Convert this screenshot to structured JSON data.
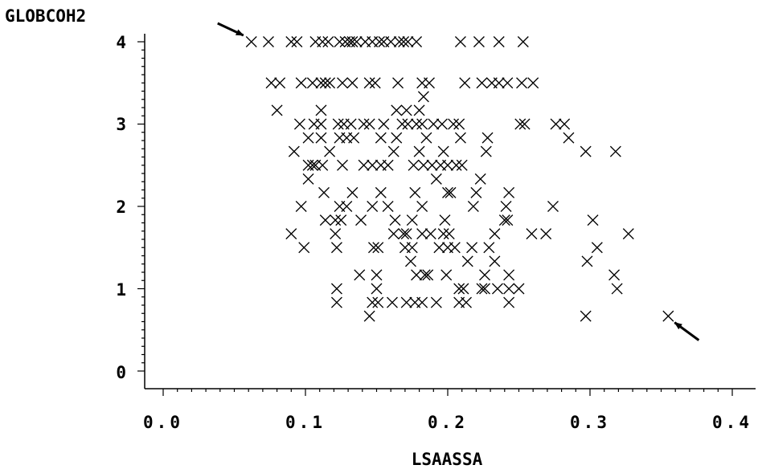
{
  "chart_data": {
    "type": "scatter",
    "title": "",
    "xlabel": "LSAASSA",
    "ylabel": "GLOBCOH2",
    "xlim": [
      0.0,
      0.4
    ],
    "ylim": [
      0,
      4
    ],
    "x_ticks": [
      "0.0",
      "0.1",
      "0.2",
      "0.3",
      "0.4"
    ],
    "y_ticks": [
      "0",
      "1",
      "2",
      "3",
      "4"
    ],
    "marker": "x",
    "marker_color": "#000000",
    "grid": false,
    "annotations": [
      {
        "type": "arrow",
        "points_to": [
          0.062,
          4.0
        ]
      },
      {
        "type": "arrow",
        "points_to": [
          0.355,
          0.667
        ]
      }
    ],
    "series": [
      {
        "points": [
          [
            0.062,
            4.0
          ],
          [
            0.074,
            4.0
          ],
          [
            0.09,
            4.0
          ],
          [
            0.094,
            4.0
          ],
          [
            0.107,
            4.0
          ],
          [
            0.112,
            4.0
          ],
          [
            0.116,
            4.0
          ],
          [
            0.124,
            4.0
          ],
          [
            0.128,
            4.0
          ],
          [
            0.131,
            4.0
          ],
          [
            0.133,
            4.0
          ],
          [
            0.136,
            4.0
          ],
          [
            0.142,
            4.0
          ],
          [
            0.147,
            4.0
          ],
          [
            0.152,
            4.0
          ],
          [
            0.155,
            4.0
          ],
          [
            0.16,
            4.0
          ],
          [
            0.166,
            4.0
          ],
          [
            0.169,
            4.0
          ],
          [
            0.172,
            4.0
          ],
          [
            0.178,
            4.0
          ],
          [
            0.209,
            4.0
          ],
          [
            0.222,
            4.0
          ],
          [
            0.236,
            4.0
          ],
          [
            0.253,
            4.0
          ],
          [
            0.076,
            3.5
          ],
          [
            0.082,
            3.5
          ],
          [
            0.097,
            3.5
          ],
          [
            0.105,
            3.5
          ],
          [
            0.111,
            3.5
          ],
          [
            0.114,
            3.5
          ],
          [
            0.117,
            3.5
          ],
          [
            0.126,
            3.5
          ],
          [
            0.133,
            3.5
          ],
          [
            0.145,
            3.5
          ],
          [
            0.149,
            3.5
          ],
          [
            0.165,
            3.5
          ],
          [
            0.182,
            3.5
          ],
          [
            0.187,
            3.5
          ],
          [
            0.212,
            3.5
          ],
          [
            0.224,
            3.5
          ],
          [
            0.231,
            3.5
          ],
          [
            0.236,
            3.5
          ],
          [
            0.242,
            3.5
          ],
          [
            0.252,
            3.5
          ],
          [
            0.26,
            3.5
          ],
          [
            0.183,
            3.333
          ],
          [
            0.08,
            3.167
          ],
          [
            0.111,
            3.167
          ],
          [
            0.164,
            3.167
          ],
          [
            0.171,
            3.167
          ],
          [
            0.18,
            3.167
          ],
          [
            0.096,
            3.0
          ],
          [
            0.106,
            3.0
          ],
          [
            0.111,
            3.0
          ],
          [
            0.123,
            3.0
          ],
          [
            0.127,
            3.0
          ],
          [
            0.132,
            3.0
          ],
          [
            0.141,
            3.0
          ],
          [
            0.145,
            3.0
          ],
          [
            0.155,
            3.0
          ],
          [
            0.168,
            3.0
          ],
          [
            0.172,
            3.0
          ],
          [
            0.178,
            3.0
          ],
          [
            0.182,
            3.0
          ],
          [
            0.19,
            3.0
          ],
          [
            0.196,
            3.0
          ],
          [
            0.204,
            3.0
          ],
          [
            0.208,
            3.0
          ],
          [
            0.251,
            3.0
          ],
          [
            0.254,
            3.0
          ],
          [
            0.276,
            3.0
          ],
          [
            0.282,
            3.0
          ],
          [
            0.102,
            2.833
          ],
          [
            0.111,
            2.833
          ],
          [
            0.124,
            2.833
          ],
          [
            0.129,
            2.833
          ],
          [
            0.134,
            2.833
          ],
          [
            0.153,
            2.833
          ],
          [
            0.164,
            2.833
          ],
          [
            0.185,
            2.833
          ],
          [
            0.209,
            2.833
          ],
          [
            0.228,
            2.833
          ],
          [
            0.285,
            2.833
          ],
          [
            0.092,
            2.667
          ],
          [
            0.117,
            2.667
          ],
          [
            0.162,
            2.667
          ],
          [
            0.18,
            2.667
          ],
          [
            0.197,
            2.667
          ],
          [
            0.227,
            2.667
          ],
          [
            0.297,
            2.667
          ],
          [
            0.318,
            2.667
          ],
          [
            0.102,
            2.5
          ],
          [
            0.105,
            2.5
          ],
          [
            0.107,
            2.5
          ],
          [
            0.112,
            2.5
          ],
          [
            0.126,
            2.5
          ],
          [
            0.141,
            2.5
          ],
          [
            0.147,
            2.5
          ],
          [
            0.153,
            2.5
          ],
          [
            0.158,
            2.5
          ],
          [
            0.176,
            2.5
          ],
          [
            0.183,
            2.5
          ],
          [
            0.189,
            2.5
          ],
          [
            0.195,
            2.5
          ],
          [
            0.2,
            2.5
          ],
          [
            0.206,
            2.5
          ],
          [
            0.21,
            2.5
          ],
          [
            0.102,
            2.333
          ],
          [
            0.192,
            2.333
          ],
          [
            0.223,
            2.333
          ],
          [
            0.113,
            2.167
          ],
          [
            0.133,
            2.167
          ],
          [
            0.153,
            2.167
          ],
          [
            0.177,
            2.167
          ],
          [
            0.2,
            2.167
          ],
          [
            0.202,
            2.167
          ],
          [
            0.22,
            2.167
          ],
          [
            0.243,
            2.167
          ],
          [
            0.097,
            2.0
          ],
          [
            0.124,
            2.0
          ],
          [
            0.129,
            2.0
          ],
          [
            0.147,
            2.0
          ],
          [
            0.158,
            2.0
          ],
          [
            0.182,
            2.0
          ],
          [
            0.218,
            2.0
          ],
          [
            0.241,
            2.0
          ],
          [
            0.274,
            2.0
          ],
          [
            0.114,
            1.833
          ],
          [
            0.121,
            1.833
          ],
          [
            0.125,
            1.833
          ],
          [
            0.139,
            1.833
          ],
          [
            0.163,
            1.833
          ],
          [
            0.175,
            1.833
          ],
          [
            0.198,
            1.833
          ],
          [
            0.24,
            1.833
          ],
          [
            0.242,
            1.833
          ],
          [
            0.302,
            1.833
          ],
          [
            0.09,
            1.667
          ],
          [
            0.121,
            1.667
          ],
          [
            0.162,
            1.667
          ],
          [
            0.169,
            1.667
          ],
          [
            0.171,
            1.667
          ],
          [
            0.182,
            1.667
          ],
          [
            0.188,
            1.667
          ],
          [
            0.197,
            1.667
          ],
          [
            0.201,
            1.667
          ],
          [
            0.233,
            1.667
          ],
          [
            0.259,
            1.667
          ],
          [
            0.269,
            1.667
          ],
          [
            0.327,
            1.667
          ],
          [
            0.099,
            1.5
          ],
          [
            0.122,
            1.5
          ],
          [
            0.148,
            1.5
          ],
          [
            0.151,
            1.5
          ],
          [
            0.17,
            1.5
          ],
          [
            0.175,
            1.5
          ],
          [
            0.194,
            1.5
          ],
          [
            0.2,
            1.5
          ],
          [
            0.205,
            1.5
          ],
          [
            0.217,
            1.5
          ],
          [
            0.229,
            1.5
          ],
          [
            0.305,
            1.5
          ],
          [
            0.174,
            1.333
          ],
          [
            0.214,
            1.333
          ],
          [
            0.233,
            1.333
          ],
          [
            0.298,
            1.333
          ],
          [
            0.138,
            1.167
          ],
          [
            0.15,
            1.167
          ],
          [
            0.178,
            1.167
          ],
          [
            0.184,
            1.167
          ],
          [
            0.186,
            1.167
          ],
          [
            0.199,
            1.167
          ],
          [
            0.226,
            1.167
          ],
          [
            0.243,
            1.167
          ],
          [
            0.317,
            1.167
          ],
          [
            0.122,
            1.0
          ],
          [
            0.15,
            1.0
          ],
          [
            0.208,
            1.0
          ],
          [
            0.211,
            1.0
          ],
          [
            0.224,
            1.0
          ],
          [
            0.226,
            1.0
          ],
          [
            0.235,
            1.0
          ],
          [
            0.243,
            1.0
          ],
          [
            0.25,
            1.0
          ],
          [
            0.319,
            1.0
          ],
          [
            0.122,
            0.833
          ],
          [
            0.147,
            0.833
          ],
          [
            0.151,
            0.833
          ],
          [
            0.161,
            0.833
          ],
          [
            0.171,
            0.833
          ],
          [
            0.177,
            0.833
          ],
          [
            0.182,
            0.833
          ],
          [
            0.192,
            0.833
          ],
          [
            0.208,
            0.833
          ],
          [
            0.213,
            0.833
          ],
          [
            0.243,
            0.833
          ],
          [
            0.145,
            0.667
          ],
          [
            0.297,
            0.667
          ],
          [
            0.355,
            0.667
          ]
        ]
      }
    ]
  }
}
